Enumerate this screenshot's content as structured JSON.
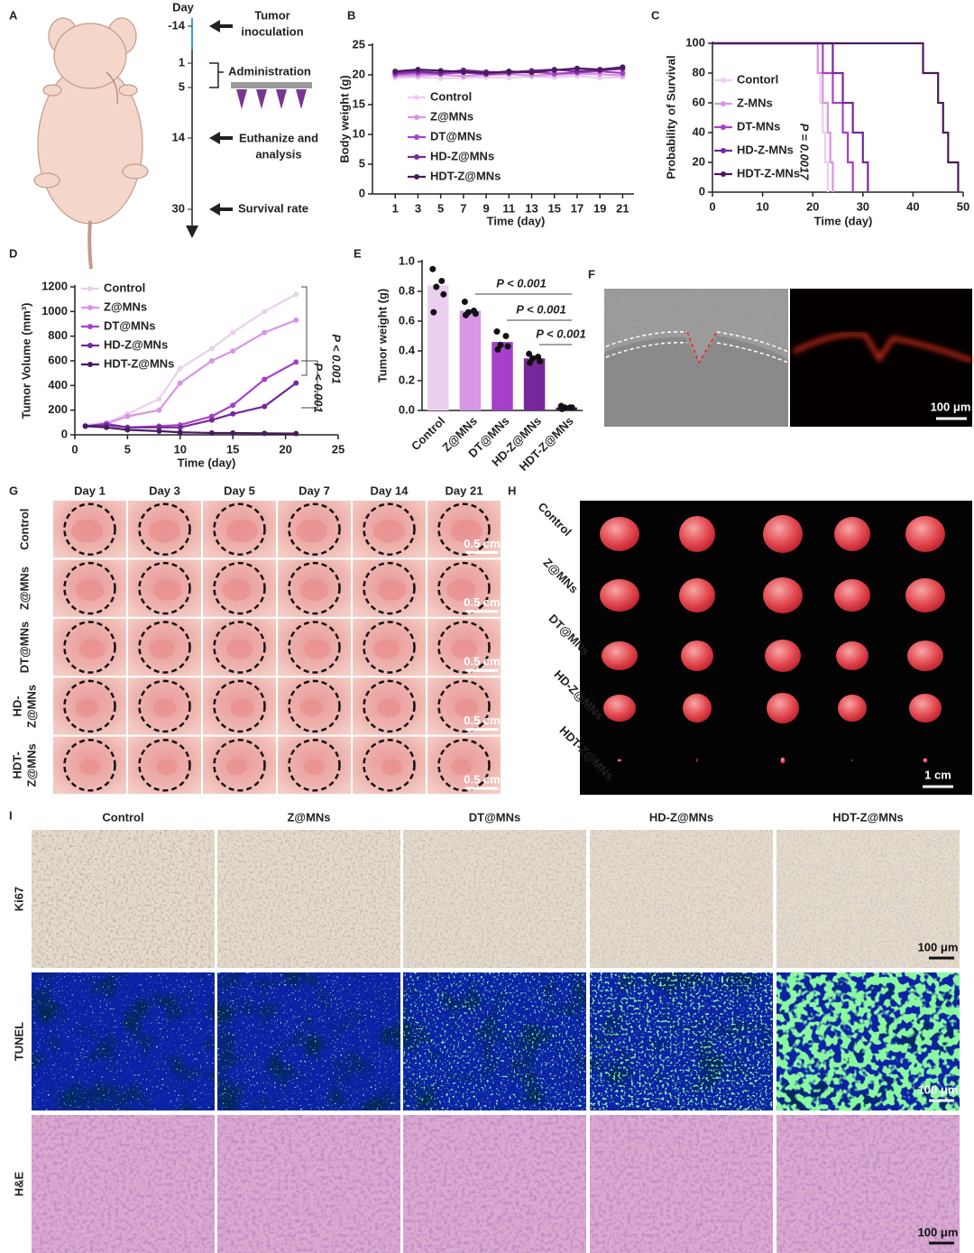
{
  "panel_labels": [
    "A",
    "B",
    "C",
    "D",
    "E",
    "F",
    "G",
    "H",
    "I"
  ],
  "schematic": {
    "axis_title": "Day",
    "days": [
      "-14",
      "1",
      "5",
      "14",
      "30"
    ],
    "events": [
      [
        "Tumor",
        "inoculation"
      ],
      [
        "Administration"
      ],
      [
        "Euthanize and",
        "analysis"
      ],
      [
        "Survival rate"
      ]
    ]
  },
  "chart_data": [
    {
      "type": "line",
      "y_label": "Body weight (g)",
      "x_label": "Time (day)",
      "x": [
        1,
        3,
        5,
        7,
        9,
        11,
        13,
        15,
        17,
        19,
        21
      ],
      "xlim": [
        -1,
        22
      ],
      "xticks": [
        1,
        3,
        5,
        7,
        9,
        11,
        13,
        15,
        17,
        19,
        21
      ],
      "ylim": [
        0,
        25
      ],
      "yticks": [
        0,
        5,
        10,
        15,
        20,
        25
      ],
      "markers": true,
      "legend": "lower left",
      "series": [
        {
          "name": "Control",
          "color": "#ead0ee",
          "values": [
            19.5,
            19.6,
            19.4,
            19.5,
            19.6,
            19.5,
            19.7,
            19.6,
            19.8,
            19.5,
            19.6
          ]
        },
        {
          "name": "Z@MNs",
          "color": "#d796e3",
          "values": [
            19.8,
            19.9,
            20,
            19.8,
            20,
            20.1,
            19.9,
            20,
            20.2,
            20.1,
            19.9
          ]
        },
        {
          "name": "DT@MNs",
          "color": "#a740c9",
          "values": [
            20.1,
            20.3,
            20.2,
            20.4,
            20.1,
            20.3,
            20.5,
            20.2,
            20.4,
            20.6,
            20.3
          ]
        },
        {
          "name": "HD-Z@MNs",
          "color": "#76289a",
          "values": [
            20.4,
            20.6,
            20.3,
            20.8,
            20.5,
            20.4,
            20.7,
            20.9,
            20.6,
            20.8,
            21
          ]
        },
        {
          "name": "HDT-Z@MNs",
          "color": "#4a1a5e",
          "values": [
            20.6,
            20.9,
            20.7,
            20.5,
            20.3,
            20.6,
            20.4,
            20.8,
            21.1,
            20.9,
            21.3
          ]
        }
      ]
    },
    {
      "type": "line",
      "step": true,
      "y_label": "Probability of Survival",
      "x_label": "Time (day)",
      "xlim": [
        0,
        50
      ],
      "xticks": [
        0,
        10,
        20,
        30,
        40,
        50
      ],
      "ylim": [
        0,
        100
      ],
      "yticks": [
        0,
        20,
        40,
        60,
        80,
        100
      ],
      "legend": "middle left",
      "annotation": "P = 0.0017",
      "series": [
        {
          "name": "Contorl",
          "color": "#ead0ee",
          "x": [
            0,
            21,
            21.5,
            22,
            22.5,
            23
          ],
          "values": [
            100,
            80,
            60,
            40,
            20,
            0
          ]
        },
        {
          "name": "Z-MNs",
          "color": "#d796e3",
          "x": [
            0,
            21,
            22,
            23,
            23.5,
            24
          ],
          "values": [
            100,
            80,
            60,
            40,
            20,
            0
          ]
        },
        {
          "name": "DT-MNs",
          "color": "#a740c9",
          "x": [
            0,
            22,
            24,
            26,
            27,
            28
          ],
          "values": [
            100,
            80,
            60,
            40,
            20,
            0
          ]
        },
        {
          "name": "HD-Z-MNs",
          "color": "#76289a",
          "x": [
            0,
            24,
            26,
            28,
            30,
            31
          ],
          "values": [
            100,
            80,
            60,
            40,
            20,
            0
          ]
        },
        {
          "name": "HDT-Z-MNs",
          "color": "#4a1a5e",
          "x": [
            0,
            42,
            45,
            46,
            47,
            49
          ],
          "values": [
            100,
            80,
            60,
            40,
            20,
            0
          ]
        }
      ]
    },
    {
      "type": "line",
      "y_label": "Tumor Volume (mm³)",
      "x_label": "Time (day)",
      "x": [
        1,
        3,
        5,
        8,
        10,
        13,
        15,
        18,
        21
      ],
      "xlim": [
        0,
        25
      ],
      "xticks": [
        0,
        5,
        10,
        15,
        20,
        25
      ],
      "ylim": [
        0,
        1200
      ],
      "yticks": [
        0,
        200,
        400,
        600,
        800,
        1000,
        1200
      ],
      "markers": true,
      "legend": "upper left",
      "annotations": [
        "P < 0.001",
        "P < 0.001"
      ],
      "series": [
        {
          "name": "Control",
          "color": "#ead0ee",
          "values": [
            80,
            100,
            170,
            290,
            540,
            700,
            830,
            1000,
            1140
          ]
        },
        {
          "name": "Z@MNs",
          "color": "#d796e3",
          "values": [
            70,
            90,
            150,
            200,
            420,
            600,
            680,
            830,
            930
          ]
        },
        {
          "name": "DT@MNs",
          "color": "#a740c9",
          "values": [
            70,
            90,
            60,
            70,
            80,
            150,
            240,
            450,
            590
          ]
        },
        {
          "name": "HD-Z@MNs",
          "color": "#76289a",
          "values": [
            70,
            80,
            60,
            60,
            60,
            120,
            170,
            230,
            420
          ]
        },
        {
          "name": "HDT-Z@MNs",
          "color": "#4a1a5e",
          "values": [
            70,
            60,
            40,
            30,
            20,
            15,
            15,
            12,
            10
          ]
        }
      ]
    },
    {
      "type": "bar",
      "y_label": "Tumor weight (g)",
      "categories": [
        "Control",
        "Z@MNs",
        "DT@MNs",
        "HD-Z@MNs",
        "HDT-Z@MNs"
      ],
      "values": [
        0.84,
        0.67,
        0.46,
        0.35,
        0.02
      ],
      "colors": [
        "#ead0ee",
        "#d796e3",
        "#a740c9",
        "#76289a",
        "#4a1a5e"
      ],
      "points": [
        [
          0.95,
          0.87,
          0.83,
          0.78,
          0.66
        ],
        [
          0.73,
          0.67,
          0.66,
          0.65,
          0.64
        ],
        [
          0.53,
          0.5,
          0.44,
          0.43,
          0.41
        ],
        [
          0.38,
          0.36,
          0.35,
          0.33,
          0.32
        ],
        [
          0.03,
          0.02,
          0.02,
          0.02,
          0.01
        ]
      ],
      "ylim": [
        0,
        1
      ],
      "yticks": [
        {
          "value": 0,
          "label": "0.0"
        },
        0.2,
        0.4,
        0.6,
        0.8,
        {
          "value": 1,
          "label": "1.0"
        }
      ],
      "annotations": [
        "P < 0.001",
        "P < 0.001",
        "P < 0.001"
      ]
    }
  ],
  "panel_F": {
    "scale_bar": "100 μm"
  },
  "panel_G": {
    "columns": [
      "Day 1",
      "Day 3",
      "Day 5",
      "Day 7",
      "Day 14",
      "Day 21"
    ],
    "rows": [
      [
        "Control"
      ],
      [
        "Z@MNs"
      ],
      [
        "DT@MNs"
      ],
      [
        "HD-",
        "Z@MNs"
      ],
      [
        "HDT-",
        "Z@MNs"
      ]
    ],
    "scale_bar": "0.5 cm"
  },
  "panel_H": {
    "rows": [
      "Control",
      "Z@MNs",
      "DT@MNs",
      "HD-Z@MNs",
      "HDT-Z@MNs"
    ],
    "scale_bar": "1 cm"
  },
  "panel_I": {
    "columns": [
      "Control",
      "Z@MNs",
      "DT@MNs",
      "HD-Z@MNs",
      "HDT-Z@MNs"
    ],
    "rows": [
      "Ki67",
      "TUNEL",
      "H&E"
    ],
    "scale_bar": "100 μm"
  }
}
